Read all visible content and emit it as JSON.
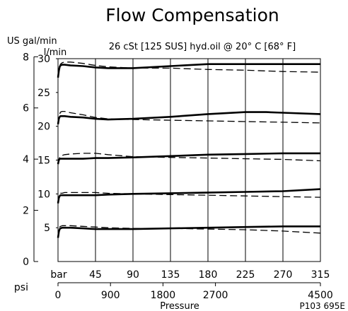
{
  "chart_data": {
    "type": "line",
    "title": "Flow Compensation",
    "subtitle": "26 cSt [125 SUS] hyd.oil @ 20° C [68° F]",
    "y_left_label": "US gal/min",
    "y_right_label": "l/min",
    "xlabel": "Pressure",
    "x_unit_bar": "bar",
    "x_unit_psi": "psi",
    "figure_code": "P103 695E",
    "xlim": [
      0,
      315
    ],
    "ylim": [
      0,
      30
    ],
    "x_ticks_bar": [
      "45",
      "90",
      "135",
      "180",
      "225",
      "270",
      "315"
    ],
    "x_ticks_psi": [
      "0",
      "900",
      "1800",
      "2700",
      "4500"
    ],
    "y_ticks_usgal": [
      "0",
      "2",
      "4",
      "6",
      "8"
    ],
    "y_ticks_lmin": [
      "5",
      "10",
      "15",
      "20",
      "25",
      "30"
    ],
    "grid": true,
    "series": [
      {
        "style": "solid",
        "x": [
          0,
          1,
          2,
          3,
          5,
          8,
          15,
          30,
          45,
          60,
          90,
          135,
          180,
          225,
          250,
          270,
          315
        ],
        "y": [
          27.2,
          28.2,
          28.8,
          29.0,
          29.1,
          29.1,
          29.0,
          28.9,
          28.7,
          28.6,
          28.6,
          28.9,
          29.2,
          29.2,
          29.2,
          29.2,
          29.2
        ]
      },
      {
        "style": "dashed",
        "x": [
          0,
          1,
          2,
          3,
          5,
          8,
          15,
          30,
          45,
          60,
          90,
          135,
          180,
          225,
          270,
          315
        ],
        "y": [
          27.2,
          28.3,
          28.9,
          29.2,
          29.4,
          29.5,
          29.5,
          29.3,
          29.0,
          28.8,
          28.6,
          28.6,
          28.4,
          28.3,
          28.1,
          28.0
        ]
      },
      {
        "style": "solid",
        "x": [
          0,
          1,
          2,
          3,
          5,
          8,
          15,
          30,
          45,
          60,
          90,
          135,
          180,
          225,
          250,
          270,
          315
        ],
        "y": [
          20.3,
          21.1,
          21.4,
          21.5,
          21.5,
          21.5,
          21.4,
          21.3,
          21.1,
          21.0,
          21.1,
          21.4,
          21.8,
          22.1,
          22.1,
          22.0,
          21.8
        ]
      },
      {
        "style": "dashed",
        "x": [
          0,
          1,
          2,
          3,
          5,
          8,
          15,
          30,
          45,
          60,
          90,
          135,
          180,
          225,
          270,
          315
        ],
        "y": [
          20.3,
          21.3,
          21.8,
          22.1,
          22.2,
          22.2,
          22.0,
          21.7,
          21.3,
          21.1,
          21.0,
          20.9,
          20.8,
          20.7,
          20.6,
          20.5
        ]
      },
      {
        "style": "solid",
        "x": [
          0,
          1,
          2,
          3,
          5,
          8,
          15,
          30,
          45,
          60,
          90,
          135,
          180,
          225,
          270,
          315
        ],
        "y": [
          14.4,
          15.0,
          15.2,
          15.2,
          15.2,
          15.2,
          15.2,
          15.2,
          15.3,
          15.3,
          15.4,
          15.6,
          15.8,
          15.9,
          16.0,
          16.0
        ]
      },
      {
        "style": "dashed",
        "x": [
          0,
          1,
          2,
          3,
          5,
          8,
          15,
          30,
          45,
          60,
          90,
          135,
          180,
          225,
          270,
          315
        ],
        "y": [
          14.4,
          15.1,
          15.4,
          15.6,
          15.7,
          15.8,
          15.9,
          16.0,
          16.0,
          15.8,
          15.5,
          15.4,
          15.3,
          15.2,
          15.1,
          14.9
        ]
      },
      {
        "style": "solid",
        "x": [
          0,
          1,
          2,
          3,
          5,
          8,
          15,
          30,
          45,
          60,
          90,
          135,
          180,
          225,
          270,
          315
        ],
        "y": [
          8.6,
          9.4,
          9.7,
          9.8,
          9.8,
          9.8,
          9.8,
          9.8,
          9.8,
          9.9,
          10.0,
          10.1,
          10.2,
          10.3,
          10.4,
          10.7
        ]
      },
      {
        "style": "dashed",
        "x": [
          0,
          1,
          2,
          3,
          5,
          8,
          15,
          30,
          45,
          60,
          90,
          135,
          180,
          225,
          270,
          315
        ],
        "y": [
          8.6,
          9.6,
          10.0,
          10.1,
          10.1,
          10.2,
          10.2,
          10.2,
          10.2,
          10.1,
          10.0,
          9.9,
          9.8,
          9.7,
          9.6,
          9.5
        ]
      },
      {
        "style": "solid",
        "x": [
          0,
          1,
          2,
          3,
          5,
          8,
          15,
          30,
          45,
          60,
          90,
          135,
          180,
          225,
          270,
          315
        ],
        "y": [
          3.5,
          4.4,
          4.8,
          4.9,
          5.0,
          5.0,
          5.0,
          4.9,
          4.8,
          4.8,
          4.8,
          4.9,
          5.0,
          5.1,
          5.2,
          5.2
        ]
      },
      {
        "style": "dashed",
        "x": [
          0,
          1,
          2,
          3,
          5,
          8,
          15,
          30,
          45,
          60,
          90,
          135,
          180,
          225,
          270,
          315
        ],
        "y": [
          3.5,
          4.7,
          5.1,
          5.2,
          5.3,
          5.3,
          5.3,
          5.2,
          5.1,
          5.0,
          4.9,
          4.9,
          4.8,
          4.7,
          4.5,
          4.2
        ]
      }
    ]
  }
}
